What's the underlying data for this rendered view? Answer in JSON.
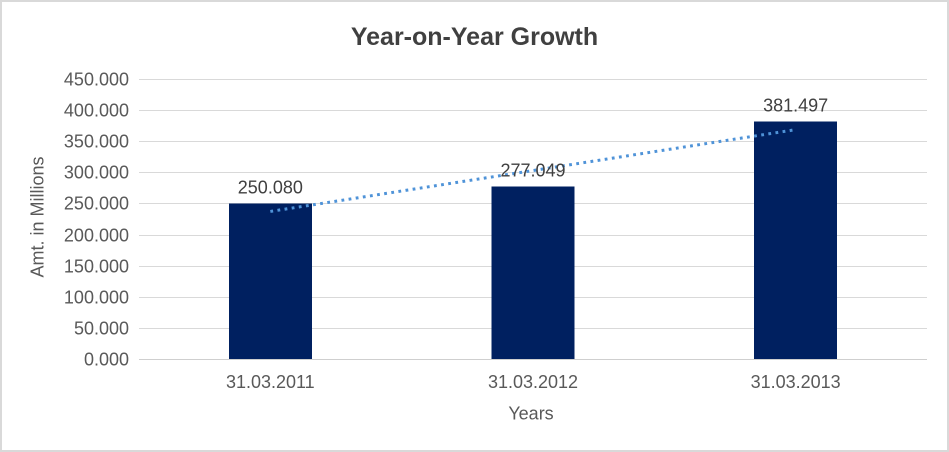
{
  "window": {
    "background": "#ffffff",
    "border_color": "#d9d9d9"
  },
  "chart_data": {
    "type": "bar",
    "title": "Year-on-Year Growth",
    "xlabel": "Years",
    "ylabel": "Amt. in Millions",
    "categories": [
      "31.03.2011",
      "31.03.2012",
      "31.03.2013"
    ],
    "values": [
      250080,
      277049,
      381497
    ],
    "data_labels": [
      "250.080",
      "277.049",
      "381.497"
    ],
    "y_tick_values": [
      0,
      50000,
      100000,
      150000,
      200000,
      250000,
      300000,
      350000,
      400000,
      450000
    ],
    "y_tick_labels": [
      "0.000",
      "50.000",
      "100.000",
      "150.000",
      "200.000",
      "250.000",
      "300.000",
      "350.000",
      "400.000",
      "450.000"
    ],
    "ylim": [
      0,
      450000
    ],
    "grid": "horizontal",
    "legend": "none",
    "trendline": {
      "type": "linear",
      "style": "dotted"
    },
    "colors": {
      "bar": "#002060",
      "trendline": "#4f93d8",
      "gridline": "#d9d9d9",
      "axis_line": "#cfcfcf",
      "title_text": "#404040",
      "tick_text": "#595959",
      "data_label_text": "#404040"
    }
  }
}
